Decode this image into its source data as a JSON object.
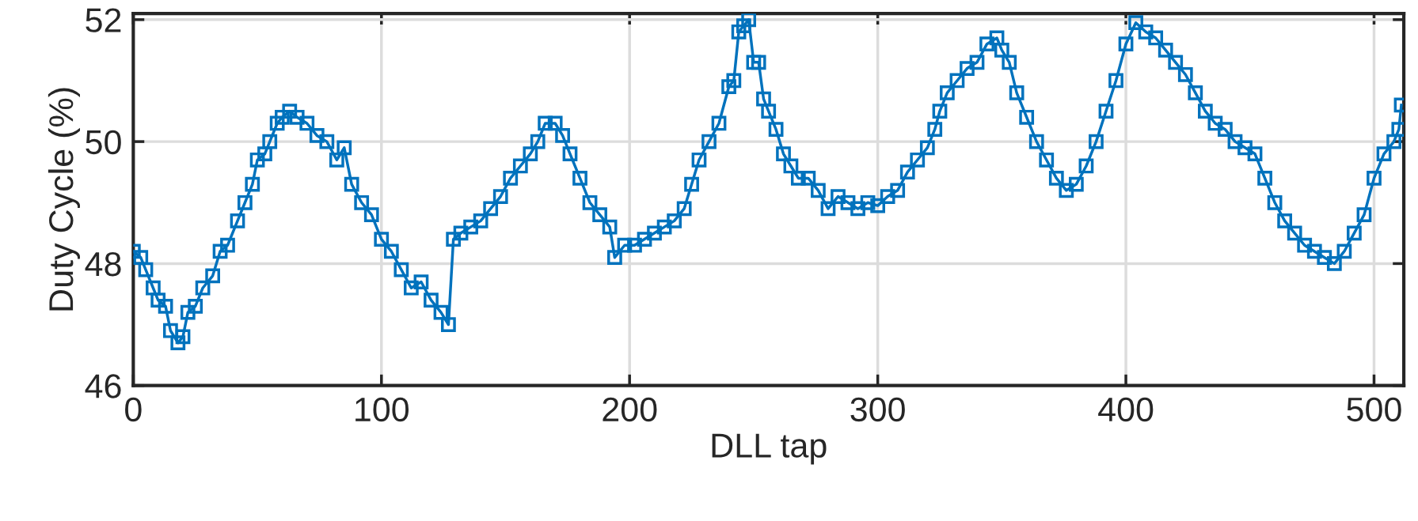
{
  "chart_data": {
    "type": "line",
    "xlabel": "DLL tap",
    "ylabel": "Duty Cycle (%)",
    "x": [
      0,
      3,
      5,
      8,
      10,
      13,
      15,
      18,
      20,
      22,
      25,
      28,
      32,
      35,
      38,
      42,
      45,
      48,
      50,
      53,
      55,
      58,
      60,
      63,
      66,
      70,
      74,
      78,
      82,
      85,
      88,
      92,
      96,
      100,
      104,
      108,
      112,
      116,
      120,
      124,
      127,
      129,
      132,
      136,
      140,
      144,
      148,
      152,
      156,
      160,
      163,
      166,
      170,
      173,
      176,
      180,
      184,
      188,
      192,
      194,
      198,
      202,
      206,
      210,
      214,
      218,
      222,
      225,
      228,
      232,
      236,
      240,
      242,
      244,
      246,
      248,
      250,
      252,
      254,
      256,
      259,
      262,
      265,
      268,
      272,
      276,
      280,
      284,
      288,
      292,
      296,
      300,
      304,
      308,
      312,
      316,
      320,
      323,
      325,
      328,
      332,
      336,
      340,
      344,
      348,
      350,
      353,
      356,
      360,
      364,
      368,
      372,
      376,
      380,
      384,
      388,
      392,
      396,
      400,
      404,
      408,
      412,
      416,
      420,
      424,
      428,
      432,
      436,
      440,
      444,
      448,
      452,
      456,
      460,
      464,
      468,
      472,
      476,
      480,
      484,
      488,
      492,
      496,
      500,
      504,
      508,
      510,
      511
    ],
    "series": [
      {
        "color": "#0072bd",
        "values": [
          48.2,
          48.1,
          47.9,
          47.6,
          47.4,
          47.3,
          46.9,
          46.7,
          46.8,
          47.2,
          47.3,
          47.6,
          47.8,
          48.2,
          48.3,
          48.7,
          49.0,
          49.3,
          49.7,
          49.8,
          50.0,
          50.3,
          50.4,
          50.5,
          50.4,
          50.3,
          50.1,
          50.0,
          49.7,
          49.9,
          49.3,
          49.0,
          48.8,
          48.4,
          48.2,
          47.9,
          47.6,
          47.7,
          47.4,
          47.2,
          47.0,
          48.4,
          48.5,
          48.6,
          48.7,
          48.9,
          49.1,
          49.4,
          49.6,
          49.8,
          50.0,
          50.3,
          50.3,
          50.1,
          49.8,
          49.4,
          49.0,
          48.8,
          48.6,
          48.1,
          48.3,
          48.3,
          48.4,
          48.5,
          48.6,
          48.7,
          48.9,
          49.3,
          49.7,
          50.0,
          50.3,
          50.9,
          51.0,
          51.8,
          51.9,
          52.0,
          51.3,
          51.3,
          50.7,
          50.5,
          50.2,
          49.8,
          49.6,
          49.4,
          49.4,
          49.2,
          48.9,
          49.1,
          49.0,
          48.9,
          49.0,
          48.95,
          49.1,
          49.2,
          49.5,
          49.7,
          49.9,
          50.2,
          50.5,
          50.8,
          51.0,
          51.2,
          51.3,
          51.6,
          51.7,
          51.5,
          51.3,
          50.8,
          50.4,
          50.0,
          49.7,
          49.4,
          49.2,
          49.3,
          49.6,
          50.0,
          50.5,
          51.0,
          51.6,
          51.95,
          51.8,
          51.7,
          51.5,
          51.3,
          51.1,
          50.8,
          50.5,
          50.3,
          50.2,
          50.0,
          49.9,
          49.8,
          49.4,
          49.0,
          48.7,
          48.5,
          48.3,
          48.2,
          48.1,
          48.0,
          48.2,
          48.5,
          48.8,
          49.4,
          49.8,
          50.0,
          50.2,
          50.6
        ]
      }
    ],
    "xlim": [
      0,
      512
    ],
    "xticks": [
      0,
      100,
      200,
      300,
      400,
      500
    ],
    "ylim": [
      46,
      52.1
    ],
    "yticks": [
      46,
      48,
      50,
      52
    ],
    "grid": true,
    "marker": "square",
    "line_style": "solid"
  }
}
